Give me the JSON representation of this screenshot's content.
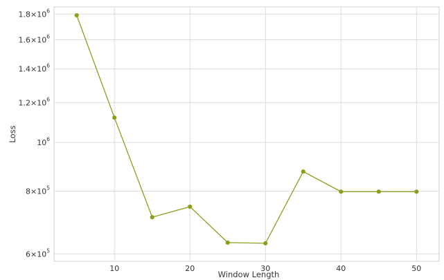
{
  "chart_data": {
    "type": "line",
    "xlabel": "Window Length",
    "ylabel": "Loss",
    "xlim": [
      2,
      53
    ],
    "ylim": [
      580000,
      1860000
    ],
    "y_scale": "log",
    "grid": true,
    "x_ticks": [
      {
        "value": 10,
        "label": "10"
      },
      {
        "value": 20,
        "label": "20"
      },
      {
        "value": 30,
        "label": "30"
      },
      {
        "value": 40,
        "label": "40"
      },
      {
        "value": 50,
        "label": "50"
      }
    ],
    "y_ticks": [
      {
        "value": 600000,
        "mantissa": "6",
        "exponent": "5"
      },
      {
        "value": 800000,
        "mantissa": "8",
        "exponent": "5"
      },
      {
        "value": 1000000,
        "mantissa": "",
        "exponent": "6"
      },
      {
        "value": 1200000,
        "mantissa": "1.2",
        "exponent": "6"
      },
      {
        "value": 1400000,
        "mantissa": "1.4",
        "exponent": "6"
      },
      {
        "value": 1600000,
        "mantissa": "1.6",
        "exponent": "6"
      },
      {
        "value": 1800000,
        "mantissa": "1.8",
        "exponent": "6"
      }
    ],
    "series": [
      {
        "color": "#8c9e1a",
        "x": [
          5,
          10,
          15,
          20,
          25,
          30,
          35,
          40,
          45,
          50
        ],
        "y": [
          1790000,
          1120000,
          710000,
          745000,
          632000,
          630000,
          875000,
          798000,
          798000,
          798000
        ]
      }
    ]
  }
}
